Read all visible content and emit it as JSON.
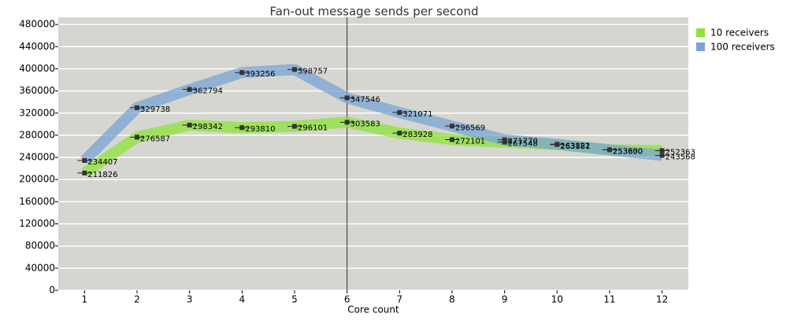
{
  "chart_data": {
    "type": "line",
    "title": "Fan-out message sends per second",
    "x_label": "Core count",
    "x": [
      1,
      2,
      3,
      4,
      5,
      6,
      7,
      8,
      9,
      10,
      11,
      12
    ],
    "series": [
      {
        "name": "10 receivers",
        "color": "#8de33a",
        "values": [
          211826,
          276587,
          298342,
          293810,
          296101,
          303583,
          283928,
          272101,
          267548,
          263181,
          253830,
          252363
        ]
      },
      {
        "name": "100 receivers",
        "color": "#7ba4d6",
        "values": [
          234407,
          329738,
          362794,
          393256,
          398757,
          347546,
          321071,
          296569,
          271770,
          263822,
          253600,
          243568
        ]
      }
    ],
    "xlim": [
      0.5,
      12.5
    ],
    "xticks": [
      1,
      2,
      3,
      4,
      5,
      6,
      7,
      8,
      9,
      10,
      11,
      12
    ],
    "ylim": [
      0,
      493000
    ],
    "yticks": [
      0,
      40000,
      80000,
      120000,
      160000,
      200000,
      240000,
      280000,
      320000,
      360000,
      400000,
      440000,
      480000
    ],
    "vline": 6,
    "grid": true,
    "legend": "right"
  }
}
